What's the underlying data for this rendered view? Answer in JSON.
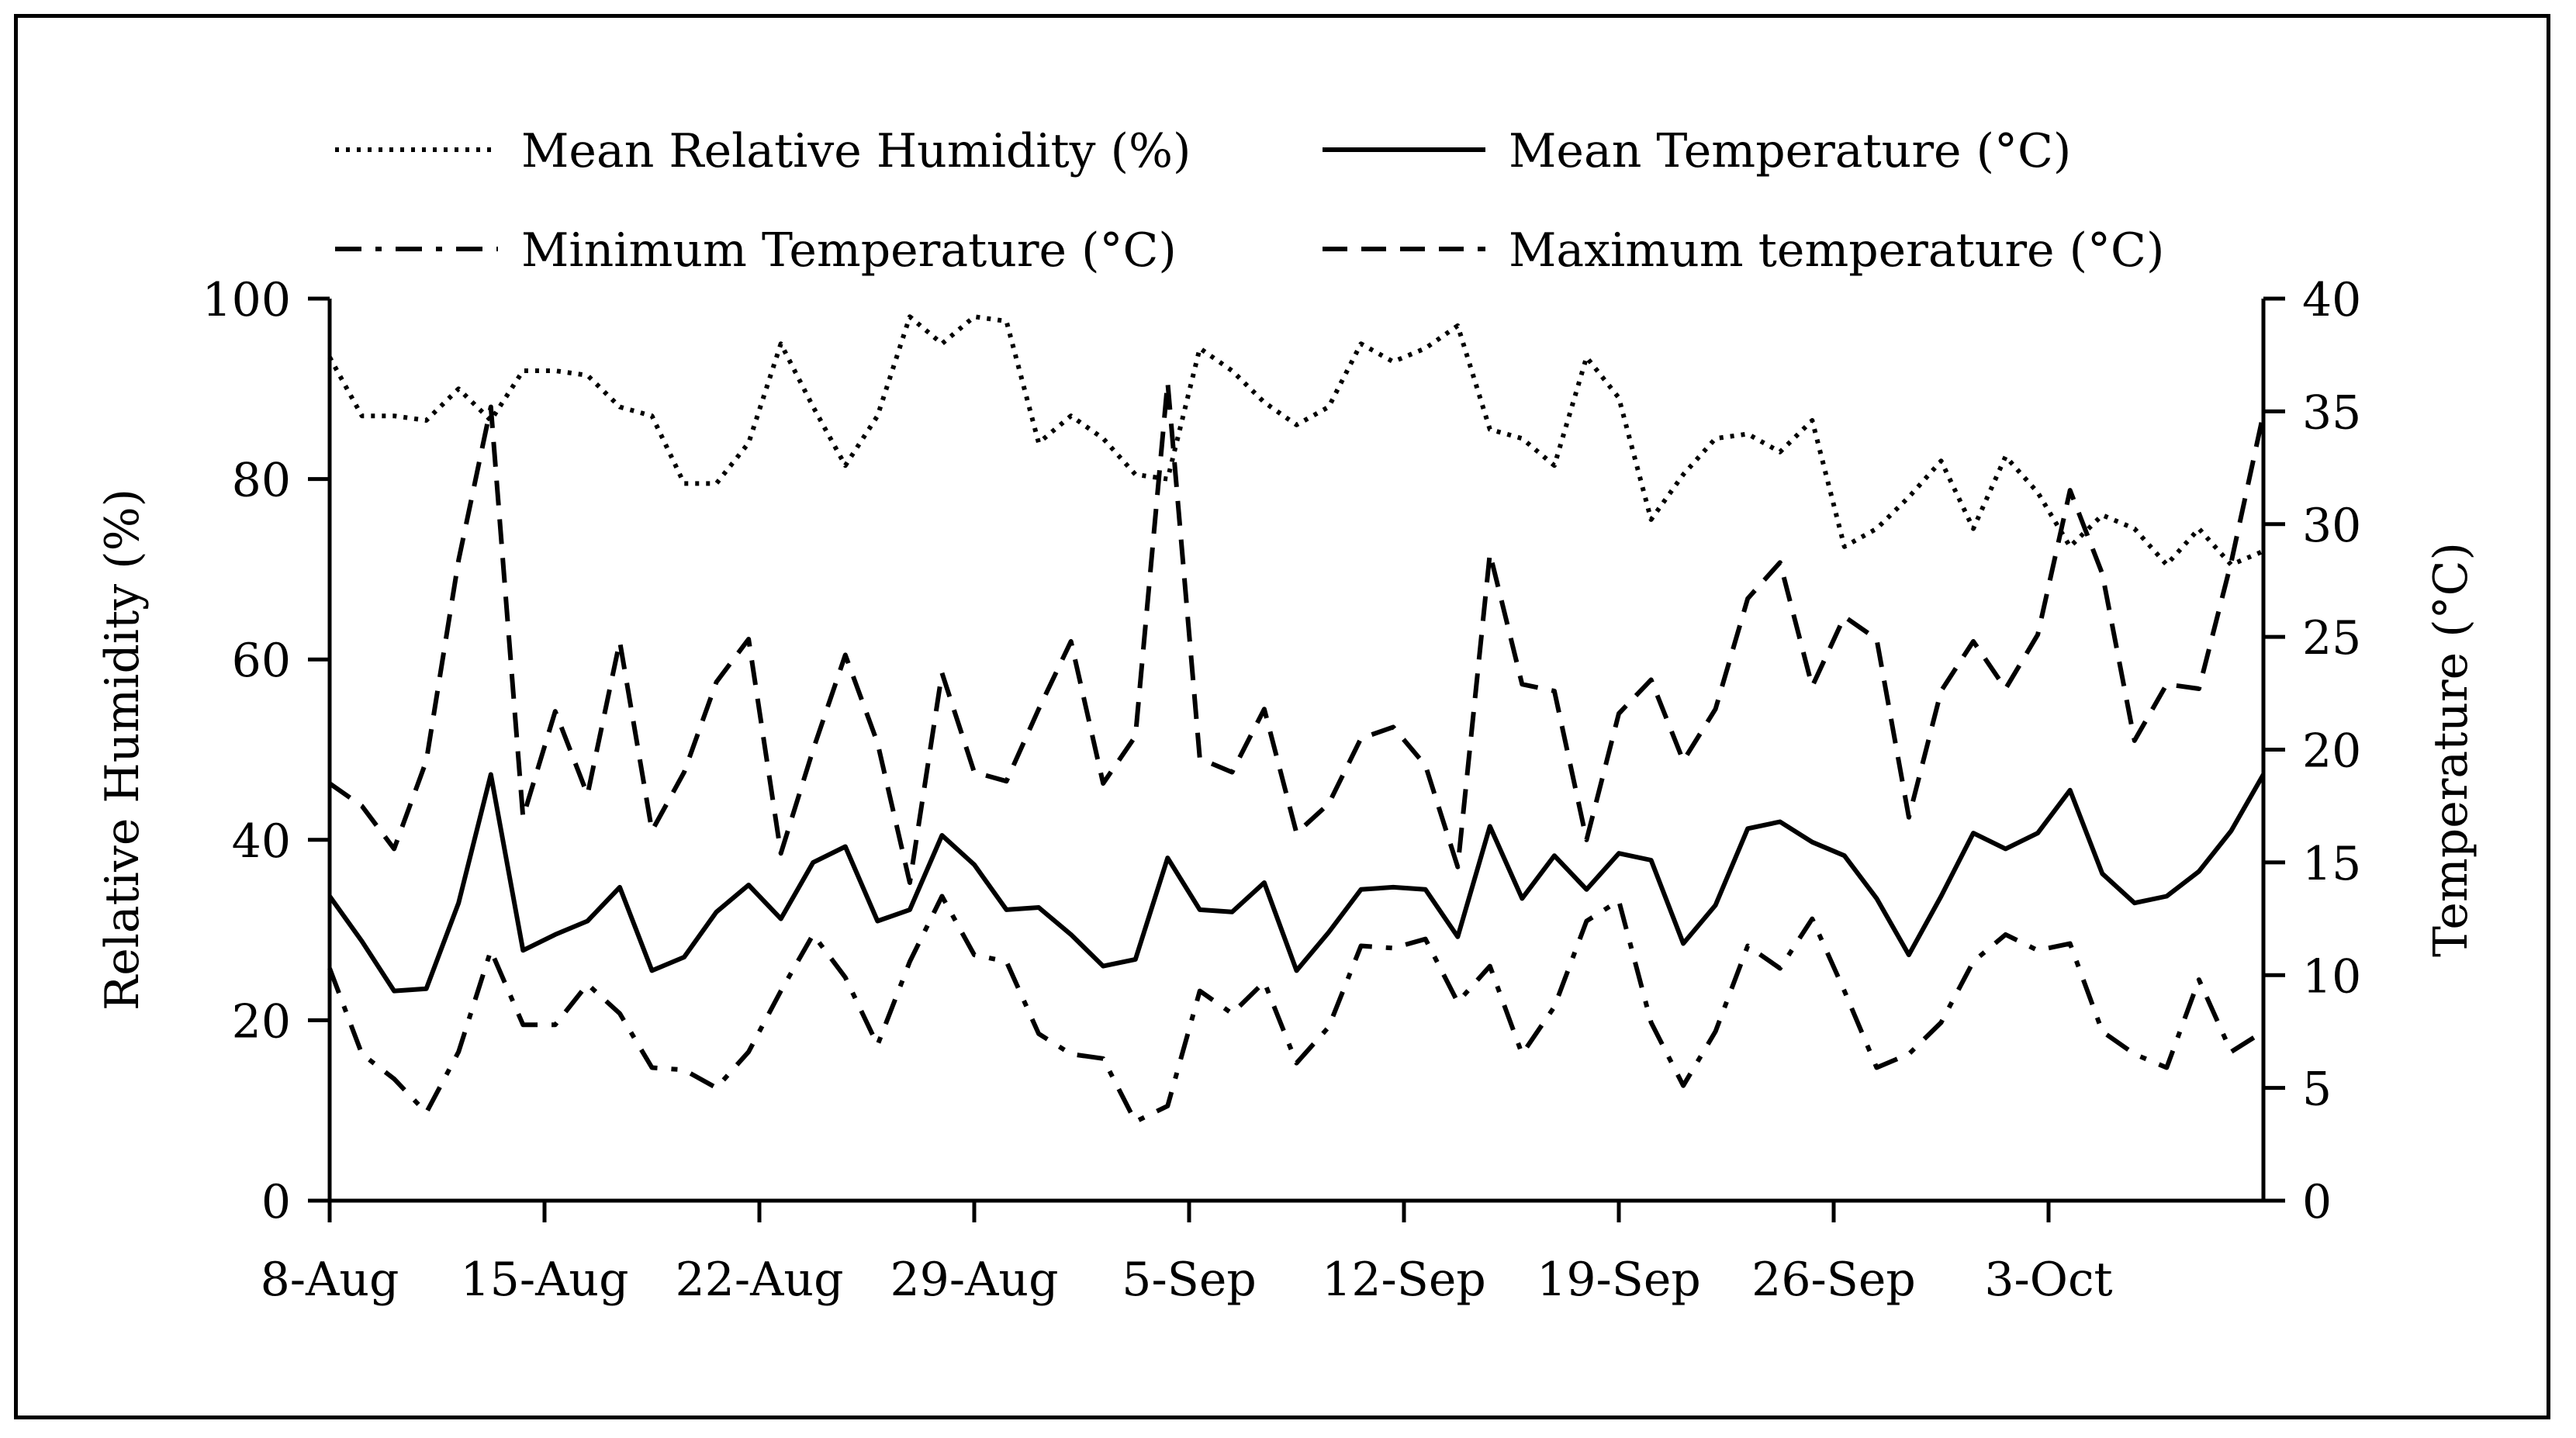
{
  "chart_data": {
    "type": "line",
    "legend": {
      "position": "top",
      "entries": [
        {
          "name": "Mean Relative Humidity (%)",
          "style": "dotted"
        },
        {
          "name": "Mean Temperature (°C)",
          "style": "solid"
        },
        {
          "name": "Minimum Temperature (°C)",
          "style": "dashdot"
        },
        {
          "name": "Maximum temperature (°C)",
          "style": "dashed"
        }
      ]
    },
    "x_ticks": [
      "8-Aug",
      "15-Aug",
      "22-Aug",
      "29-Aug",
      "5-Sep",
      "12-Sep",
      "19-Sep",
      "26-Sep",
      "3-Oct"
    ],
    "x_start_date": "8-Aug",
    "x_days": 63,
    "y_left": {
      "label": "Relative Humidity (%)",
      "min": 0,
      "max": 100,
      "ticks": [
        0,
        20,
        40,
        60,
        80,
        100
      ]
    },
    "y_right": {
      "label": "Temperature (°C)",
      "min": 0,
      "max": 40,
      "ticks": [
        0,
        5,
        10,
        15,
        20,
        25,
        30,
        35,
        40
      ]
    },
    "series": [
      {
        "name": "Mean Relative Humidity (%)",
        "axis": "left",
        "style": "dotted",
        "values": [
          93.5,
          87,
          87,
          86.5,
          90,
          86.5,
          92,
          92,
          91.5,
          88,
          87,
          79.5,
          79.5,
          84,
          95,
          88,
          81.5,
          87,
          98,
          95,
          98,
          97.5,
          84,
          87,
          84.5,
          80.5,
          80,
          94.5,
          92,
          88.5,
          86,
          88,
          95,
          93,
          94.5,
          97,
          85.5,
          84.5,
          81.5,
          93.5,
          89,
          75.5,
          80.5,
          84.5,
          85,
          83,
          86.5,
          72.5,
          74.5,
          78,
          82,
          74.5,
          82.5,
          78.5,
          72.5,
          76,
          74.5,
          70.5,
          74.5,
          70.5,
          72
        ]
      },
      {
        "name": "Mean Temperature (°C)",
        "axis": "right",
        "style": "solid",
        "values": [
          13.5,
          11.5,
          9.3,
          9.4,
          13.2,
          18.9,
          11.1,
          11.8,
          12.4,
          13.9,
          10.2,
          10.8,
          12.8,
          14,
          12.5,
          15,
          15.7,
          12.4,
          12.9,
          16.2,
          14.9,
          12.9,
          13,
          11.8,
          10.4,
          10.7,
          15.2,
          12.9,
          12.8,
          14.1,
          10.2,
          11.9,
          13.8,
          13.9,
          13.8,
          11.7,
          16.6,
          13.4,
          15.3,
          13.8,
          15.4,
          15.1,
          11.4,
          13.1,
          16.5,
          16.8,
          15.9,
          15.3,
          13.4,
          10.9,
          13.5,
          16.3,
          15.6,
          16.3,
          18.2,
          14.5,
          13.2,
          13.5,
          14.6,
          16.4,
          18.9
        ]
      },
      {
        "name": "Minimum Temperature (°C)",
        "axis": "right",
        "style": "dashdot",
        "values": [
          10.3,
          6.5,
          5.4,
          3.9,
          6.6,
          11.1,
          7.8,
          7.8,
          9.6,
          8.3,
          5.9,
          5.8,
          5,
          6.6,
          9.3,
          11.8,
          9.9,
          6.9,
          10.6,
          13.5,
          10.9,
          10.6,
          7.4,
          6.5,
          6.3,
          3.5,
          4.2,
          9.3,
          8.3,
          9.7,
          6.1,
          7.7,
          11.3,
          11.2,
          11.6,
          8.8,
          10.4,
          6.5,
          8.6,
          12.4,
          13.3,
          7.9,
          5.1,
          7.5,
          11.3,
          10.3,
          12.5,
          9.3,
          5.9,
          6.5,
          7.9,
          10.6,
          11.8,
          11.1,
          11.4,
          7.5,
          6.5,
          5.9,
          9.8,
          6.6,
          7.5
        ]
      },
      {
        "name": "Maximum temperature (°C)",
        "axis": "right",
        "style": "dashed",
        "values": [
          18.5,
          17.5,
          15.6,
          19.5,
          28.4,
          35.2,
          17,
          21.7,
          18,
          24.8,
          16.4,
          19,
          23,
          24.9,
          15.4,
          20,
          24.2,
          20.3,
          14.1,
          23.4,
          19,
          18.6,
          21.8,
          24.8,
          18.5,
          20.6,
          36.3,
          19.6,
          19,
          21.8,
          16.3,
          17.6,
          20.5,
          21,
          19.3,
          14.8,
          28.7,
          22.9,
          22.6,
          16,
          21.6,
          23.1,
          19.5,
          21.8,
          26.7,
          28.3,
          22.8,
          25.9,
          24.9,
          17,
          22.6,
          24.8,
          22.7,
          25.1,
          31.5,
          27.8,
          20.4,
          22.9,
          22.7,
          28.3,
          34.9
        ]
      }
    ]
  }
}
